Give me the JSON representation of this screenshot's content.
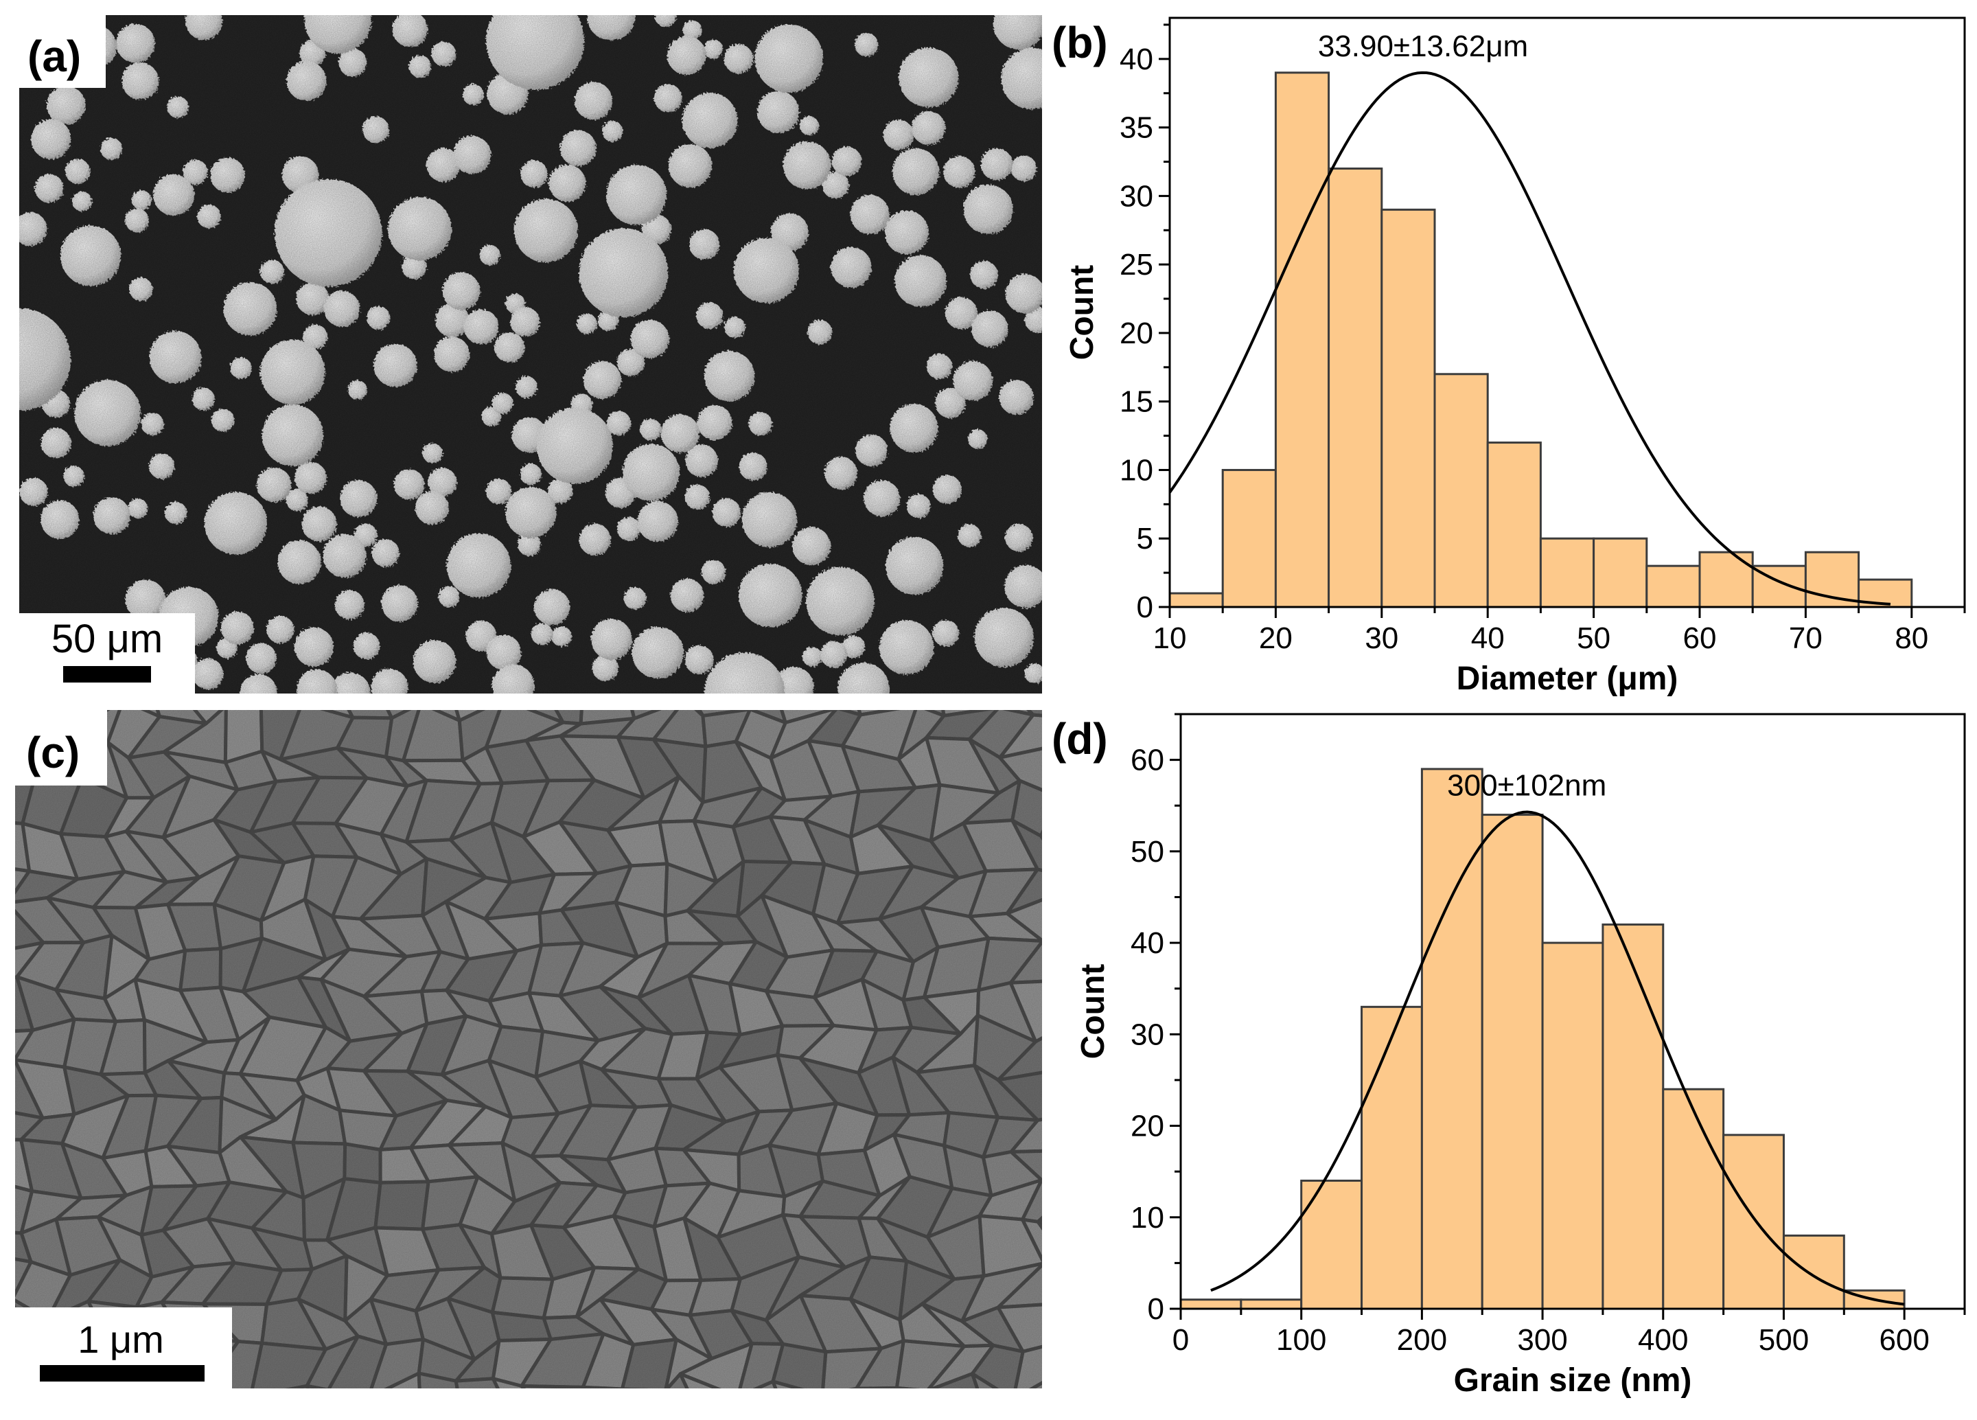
{
  "panels": [
    {
      "id": "a",
      "label": "(a)",
      "scale_bar_label": "50 μm"
    },
    {
      "id": "b",
      "label": "(b)"
    },
    {
      "id": "c",
      "label": "(c)",
      "scale_bar_label": "1 μm"
    },
    {
      "id": "d",
      "label": "(d)"
    }
  ],
  "colors": {
    "bar_fill": "#fdc98b",
    "bar_stroke": "#3c3c3c",
    "curve": "#000000",
    "axis": "#000000",
    "sem_a_background": "#262626",
    "sem_a_particles": "#e9e9e9",
    "sem_c_grains": "#8f8f8f",
    "sem_c_boundaries": "#4a4a4a"
  },
  "chart_data": [
    {
      "panel": "b",
      "type": "bar",
      "title": "",
      "annotation": "33.90±13.62μm",
      "xlabel": "Diameter (μm)",
      "ylabel": "Count",
      "bin_edges": [
        10,
        15,
        20,
        25,
        30,
        35,
        40,
        45,
        50,
        55,
        60,
        65,
        70,
        75,
        80
      ],
      "values": [
        1,
        10,
        39,
        32,
        29,
        17,
        12,
        5,
        5,
        3,
        4,
        3,
        4,
        2
      ],
      "xlim": [
        10,
        85
      ],
      "ylim": [
        0,
        43
      ],
      "xticks": [
        10,
        20,
        30,
        40,
        50,
        60,
        70,
        80
      ],
      "yticks": [
        0,
        5,
        10,
        15,
        20,
        25,
        30,
        35,
        40
      ],
      "fit": {
        "type": "gaussian",
        "mean": 33.9,
        "sd": 13.62,
        "peak": 39,
        "x_range": [
          10,
          78
        ]
      },
      "grid": false
    },
    {
      "panel": "d",
      "type": "bar",
      "title": "",
      "annotation": "300±102nm",
      "xlabel": "Grain size (nm)",
      "ylabel": "Count",
      "bin_edges": [
        0,
        50,
        100,
        150,
        200,
        250,
        300,
        350,
        400,
        450,
        500,
        550,
        600
      ],
      "values": [
        1,
        1,
        14,
        33,
        59,
        54,
        40,
        42,
        24,
        19,
        8,
        2
      ],
      "xlim": [
        0,
        650
      ],
      "ylim": [
        0,
        65
      ],
      "xticks": [
        0,
        100,
        200,
        300,
        400,
        500,
        600
      ],
      "yticks": [
        0,
        10,
        20,
        30,
        40,
        50,
        60
      ],
      "fit": {
        "type": "gaussian",
        "mean": 287,
        "sd": 102,
        "peak": 54.3,
        "x_range": [
          25,
          600
        ]
      },
      "grid": false
    }
  ]
}
